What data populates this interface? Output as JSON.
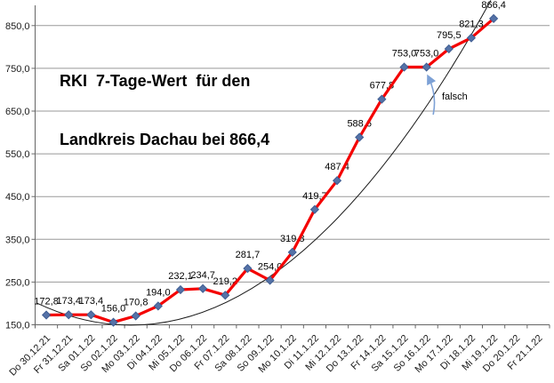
{
  "chart_data": {
    "type": "line",
    "title": "RKI 7-Tage-Wert für den Landkreis Dachau bei 866,4",
    "title_lines": [
      "RKI  7-Tage-Wert  für den",
      "Landkreis Dachau bei 866,4"
    ],
    "categories": [
      "Do 30.12.21",
      "Fr 31.12.21",
      "Sa 01.1.22",
      "So 02.1.22",
      "Mo 03.1.22",
      "Di 04.1.22",
      "Mi 05.1.22",
      "Do 06.1.22",
      "Fr 07.1.22",
      "Sa 08.1.22",
      "So 09.1.22",
      "Mo 10.1.22",
      "Di 11.1.22",
      "Mi 12.1.22",
      "Do 13.1.22",
      "Fr 14.1.22",
      "Sa 15.1.22",
      "So 16.1.22",
      "Mo 17.1.22",
      "Di 18.1.22",
      "Mi 19.1.22",
      "Do 20.1.22",
      "Fr 21.1.22"
    ],
    "series": [
      {
        "name": "RKI 7-Tage-Wert",
        "values": [
          172.8,
          173.4,
          173.4,
          156.0,
          170.8,
          194.0,
          232.1,
          234.7,
          219.2,
          281.7,
          254.0,
          319.8,
          419.7,
          487.4,
          588.6,
          677.8,
          753.0,
          753.0,
          795.5,
          821.3,
          866.4,
          null,
          null
        ]
      }
    ],
    "data_labels": [
      "172,8",
      "173,4",
      "173,4",
      "156,0",
      "170,8",
      "194,0",
      "232,1",
      "234,7",
      "219,2",
      "281,7",
      "254,0",
      "319,8",
      "419,7",
      "487,4",
      "588,6",
      "677,8",
      "753,0",
      "753,0",
      "795,5",
      "821,3",
      "866,4"
    ],
    "y_ticks": [
      150,
      250,
      350,
      450,
      550,
      650,
      750,
      850
    ],
    "y_tick_labels": [
      "150,0",
      "250,0",
      "350,0",
      "450,0",
      "550,0",
      "650,0",
      "750,0",
      "850,0"
    ],
    "ylim": [
      150,
      880
    ],
    "grid": true,
    "legend": "none",
    "trendline": {
      "type": "polynomial",
      "present": true
    },
    "annotation": {
      "text": "falsch",
      "target_category": "So 16.1.22",
      "target_index": 17,
      "target_value": 753.0
    },
    "colors": {
      "series_line": "#f40000",
      "marker_fill": "#5572a7",
      "marker_stroke": "#3f5e93",
      "trendline": "#1a1a1a",
      "grid": "#999999",
      "axis": "#666666",
      "arrow": "#7da1d6",
      "text": "#1a1a1a",
      "background": "#ffffff"
    }
  }
}
